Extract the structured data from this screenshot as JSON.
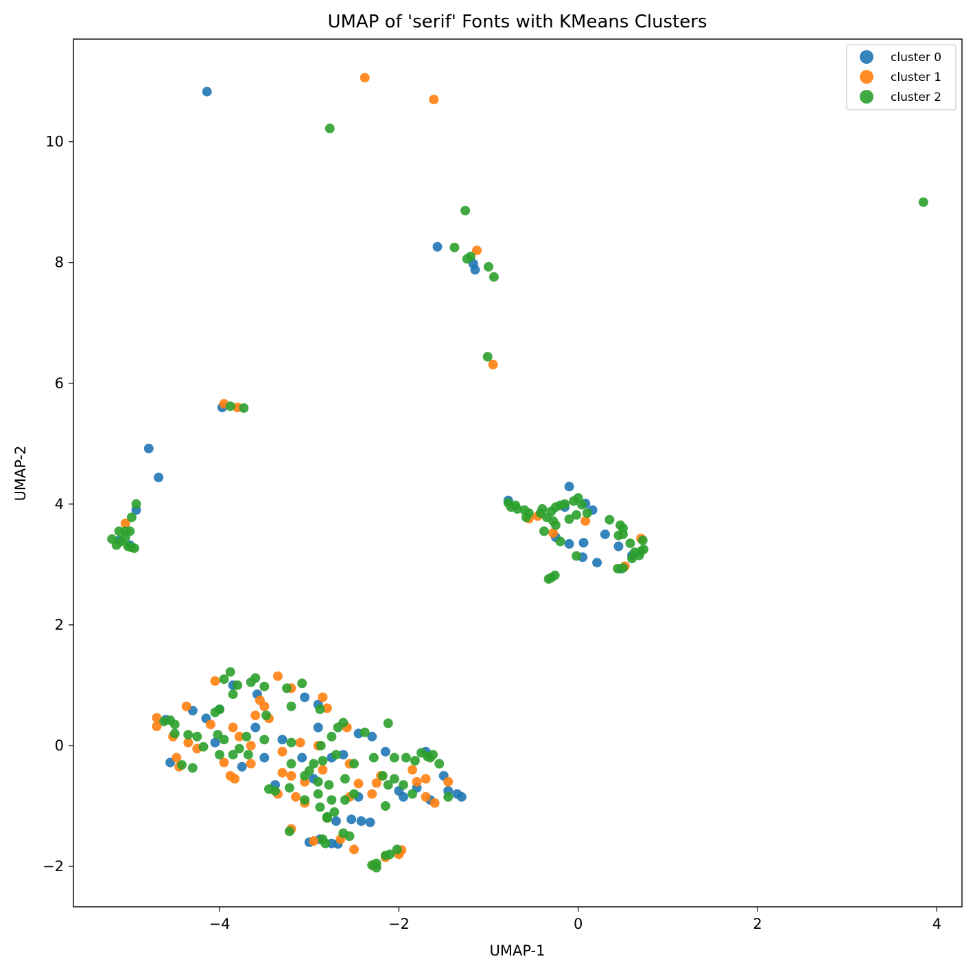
{
  "chart_data": {
    "type": "scatter",
    "title": "UMAP of 'serif' Fonts with KMeans Clusters",
    "xlabel": "UMAP-1",
    "ylabel": "UMAP-2",
    "xlim": [
      -5.63,
      4.28
    ],
    "ylim": [
      -2.67,
      11.7
    ],
    "xticks": [
      -4,
      -2,
      0,
      2,
      4
    ],
    "yticks": [
      -2,
      0,
      2,
      4,
      6,
      8,
      10
    ],
    "xtick_labels": [
      "−4",
      "−2",
      "0",
      "2",
      "4"
    ],
    "ytick_labels": [
      "−2",
      "0",
      "2",
      "4",
      "6",
      "8",
      "10"
    ],
    "legend": {
      "position": "top-right",
      "entries": [
        "cluster 0",
        "cluster 1",
        "cluster 2"
      ]
    },
    "grid": false,
    "series": [
      {
        "name": "cluster 0",
        "color": "#1f77b4",
        "points": [
          [
            -4.14,
            10.83
          ],
          [
            -1.57,
            8.26
          ],
          [
            -1.17,
            7.98
          ],
          [
            -1.15,
            7.88
          ],
          [
            -3.97,
            5.6
          ],
          [
            -4.79,
            4.92
          ],
          [
            -4.68,
            4.44
          ],
          [
            -4.93,
            3.9
          ],
          [
            -5.12,
            3.4
          ],
          [
            -5.0,
            3.32
          ],
          [
            -0.1,
            4.29
          ],
          [
            -0.78,
            4.06
          ],
          [
            -0.15,
            3.95
          ],
          [
            0.08,
            4.01
          ],
          [
            0.16,
            3.9
          ],
          [
            0.3,
            3.5
          ],
          [
            0.06,
            3.36
          ],
          [
            -0.1,
            3.34
          ],
          [
            0.05,
            3.12
          ],
          [
            0.21,
            3.03
          ],
          [
            0.45,
            3.3
          ],
          [
            0.6,
            3.15
          ],
          [
            0.48,
            2.93
          ],
          [
            -0.25,
            3.45
          ],
          [
            -4.6,
            0.43
          ],
          [
            -4.3,
            0.58
          ],
          [
            -4.15,
            0.45
          ],
          [
            -4.0,
            0.6
          ],
          [
            -3.6,
            0.3
          ],
          [
            -3.85,
            1.0
          ],
          [
            -3.58,
            0.85
          ],
          [
            -3.3,
            0.1
          ],
          [
            -3.05,
            0.8
          ],
          [
            -2.9,
            0.68
          ],
          [
            -2.9,
            0.3
          ],
          [
            -4.55,
            -0.28
          ],
          [
            -4.05,
            0.05
          ],
          [
            -3.5,
            -0.2
          ],
          [
            -3.75,
            -0.35
          ],
          [
            -3.38,
            -0.65
          ],
          [
            -3.08,
            -0.2
          ],
          [
            -2.95,
            -0.55
          ],
          [
            -2.75,
            -0.2
          ],
          [
            -2.62,
            -0.15
          ],
          [
            -2.45,
            0.2
          ],
          [
            -2.3,
            0.15
          ],
          [
            -2.45,
            -0.85
          ],
          [
            -2.15,
            -0.1
          ],
          [
            -2.0,
            -0.75
          ],
          [
            -1.95,
            -0.85
          ],
          [
            -1.8,
            -0.7
          ],
          [
            -1.5,
            -0.5
          ],
          [
            -1.45,
            -0.75
          ],
          [
            -1.35,
            -0.8
          ],
          [
            -1.3,
            -0.85
          ],
          [
            -1.65,
            -0.9
          ],
          [
            -1.7,
            -0.1
          ],
          [
            -2.7,
            -1.25
          ],
          [
            -2.53,
            -1.22
          ],
          [
            -2.42,
            -1.25
          ],
          [
            -2.32,
            -1.27
          ],
          [
            -3.0,
            -1.6
          ],
          [
            -2.75,
            -1.62
          ],
          [
            -2.68,
            -1.63
          ],
          [
            -2.88,
            -1.55
          ]
        ]
      },
      {
        "name": "cluster 1",
        "color": "#ff7f0e",
        "points": [
          [
            -2.38,
            11.06
          ],
          [
            -1.61,
            10.7
          ],
          [
            -1.13,
            8.2
          ],
          [
            -0.95,
            6.31
          ],
          [
            -3.95,
            5.66
          ],
          [
            -3.8,
            5.6
          ],
          [
            -5.05,
            3.68
          ],
          [
            -0.45,
            3.8
          ],
          [
            -0.55,
            3.76
          ],
          [
            -0.28,
            3.52
          ],
          [
            0.08,
            3.72
          ],
          [
            0.52,
            2.97
          ],
          [
            0.7,
            3.43
          ],
          [
            -4.7,
            0.46
          ],
          [
            -4.7,
            0.32
          ],
          [
            -4.37,
            0.65
          ],
          [
            -4.35,
            0.05
          ],
          [
            -4.48,
            -0.2
          ],
          [
            -4.45,
            -0.35
          ],
          [
            -4.52,
            0.15
          ],
          [
            -4.25,
            -0.05
          ],
          [
            -4.1,
            0.35
          ],
          [
            -4.05,
            1.07
          ],
          [
            -3.95,
            -0.28
          ],
          [
            -3.6,
            0.5
          ],
          [
            -3.85,
            0.3
          ],
          [
            -3.88,
            -0.5
          ],
          [
            -3.83,
            -0.55
          ],
          [
            -3.55,
            0.75
          ],
          [
            -3.5,
            0.65
          ],
          [
            -3.45,
            0.45
          ],
          [
            -3.78,
            0.15
          ],
          [
            -3.65,
            0.0
          ],
          [
            -3.65,
            -0.3
          ],
          [
            -3.35,
            1.15
          ],
          [
            -3.2,
            0.95
          ],
          [
            -3.3,
            -0.1
          ],
          [
            -3.3,
            -0.45
          ],
          [
            -3.35,
            -0.8
          ],
          [
            -3.2,
            -0.5
          ],
          [
            -3.1,
            0.05
          ],
          [
            -3.05,
            -0.6
          ],
          [
            -3.05,
            -0.95
          ],
          [
            -2.9,
            0.0
          ],
          [
            -2.85,
            0.8
          ],
          [
            -2.8,
            0.62
          ],
          [
            -2.85,
            -0.4
          ],
          [
            -2.8,
            -1.2
          ],
          [
            -2.65,
            -1.55
          ],
          [
            -2.58,
            0.3
          ],
          [
            -2.55,
            -0.3
          ],
          [
            -2.45,
            -0.63
          ],
          [
            -2.3,
            -0.8
          ],
          [
            -2.25,
            -0.62
          ],
          [
            -2.28,
            -1.98
          ],
          [
            -2.15,
            -1.85
          ],
          [
            -2.0,
            -1.8
          ],
          [
            -1.97,
            -1.73
          ],
          [
            -2.5,
            -1.72
          ],
          [
            -2.2,
            -0.5
          ],
          [
            -1.8,
            -0.6
          ],
          [
            -1.7,
            -0.55
          ],
          [
            -1.7,
            -0.85
          ],
          [
            -1.6,
            -0.95
          ],
          [
            -1.45,
            -0.6
          ],
          [
            -1.85,
            -0.4
          ],
          [
            -2.95,
            -1.58
          ],
          [
            -3.2,
            -1.38
          ],
          [
            -3.15,
            -0.85
          ],
          [
            -2.55,
            -0.85
          ]
        ]
      },
      {
        "name": "cluster 2",
        "color": "#2ca02c",
        "points": [
          [
            -2.77,
            10.22
          ],
          [
            3.85,
            9.0
          ],
          [
            -1.26,
            8.86
          ],
          [
            -1.38,
            8.25
          ],
          [
            -1.2,
            8.1
          ],
          [
            -1.24,
            8.06
          ],
          [
            -1.0,
            7.93
          ],
          [
            -0.94,
            7.76
          ],
          [
            -1.01,
            6.44
          ],
          [
            -3.88,
            5.62
          ],
          [
            -3.73,
            5.59
          ],
          [
            -4.93,
            4.0
          ],
          [
            -4.98,
            3.78
          ],
          [
            -5.05,
            3.55
          ],
          [
            -5.12,
            3.55
          ],
          [
            -5.2,
            3.42
          ],
          [
            -5.15,
            3.32
          ],
          [
            -5.1,
            3.38
          ],
          [
            -5.05,
            3.45
          ],
          [
            -5.02,
            3.3
          ],
          [
            -4.98,
            3.28
          ],
          [
            -4.95,
            3.27
          ],
          [
            -5.0,
            3.55
          ],
          [
            -0.78,
            4.02
          ],
          [
            -0.75,
            3.95
          ],
          [
            -0.7,
            3.98
          ],
          [
            -0.68,
            3.92
          ],
          [
            -0.6,
            3.9
          ],
          [
            -0.55,
            3.85
          ],
          [
            -0.58,
            3.78
          ],
          [
            -0.42,
            3.85
          ],
          [
            -0.4,
            3.92
          ],
          [
            -0.35,
            3.78
          ],
          [
            -0.3,
            3.88
          ],
          [
            -0.25,
            3.95
          ],
          [
            -0.2,
            3.98
          ],
          [
            -0.15,
            4.0
          ],
          [
            -0.05,
            4.05
          ],
          [
            0.0,
            4.1
          ],
          [
            0.04,
            3.99
          ],
          [
            0.1,
            3.85
          ],
          [
            -0.02,
            3.82
          ],
          [
            -0.1,
            3.75
          ],
          [
            -0.25,
            3.65
          ],
          [
            -0.38,
            3.55
          ],
          [
            -0.28,
            3.72
          ],
          [
            -0.2,
            3.38
          ],
          [
            -0.02,
            3.14
          ],
          [
            -0.3,
            2.78
          ],
          [
            -0.26,
            2.82
          ],
          [
            -0.33,
            2.76
          ],
          [
            0.35,
            3.74
          ],
          [
            0.47,
            3.65
          ],
          [
            0.5,
            3.6
          ],
          [
            0.45,
            3.48
          ],
          [
            0.5,
            3.5
          ],
          [
            0.58,
            3.35
          ],
          [
            0.63,
            3.2
          ],
          [
            0.7,
            3.22
          ],
          [
            0.73,
            3.25
          ],
          [
            0.72,
            3.4
          ],
          [
            0.6,
            3.1
          ],
          [
            0.68,
            3.15
          ],
          [
            0.44,
            2.93
          ],
          [
            0.5,
            2.94
          ],
          [
            -4.62,
            0.4
          ],
          [
            -4.55,
            0.42
          ],
          [
            -4.5,
            0.35
          ],
          [
            -4.5,
            0.2
          ],
          [
            -4.35,
            0.18
          ],
          [
            -4.25,
            0.15
          ],
          [
            -4.3,
            -0.37
          ],
          [
            -4.42,
            -0.32
          ],
          [
            -4.18,
            -0.02
          ],
          [
            -4.05,
            0.55
          ],
          [
            -4.0,
            0.6
          ],
          [
            -4.02,
            0.18
          ],
          [
            -4.0,
            -0.15
          ],
          [
            -3.95,
            0.1
          ],
          [
            -3.88,
            1.22
          ],
          [
            -3.95,
            1.1
          ],
          [
            -3.85,
            0.85
          ],
          [
            -3.8,
            1.0
          ],
          [
            -3.85,
            -0.15
          ],
          [
            -3.78,
            -0.05
          ],
          [
            -3.7,
            0.15
          ],
          [
            -3.65,
            1.05
          ],
          [
            -3.6,
            1.12
          ],
          [
            -3.5,
            0.98
          ],
          [
            -3.48,
            0.5
          ],
          [
            -3.5,
            0.1
          ],
          [
            -3.68,
            -0.15
          ],
          [
            -3.25,
            0.95
          ],
          [
            -3.2,
            0.65
          ],
          [
            -3.08,
            1.03
          ],
          [
            -3.2,
            0.05
          ],
          [
            -3.2,
            -0.3
          ],
          [
            -3.22,
            -0.7
          ],
          [
            -3.38,
            -0.75
          ],
          [
            -3.45,
            -0.72
          ],
          [
            -3.05,
            -0.5
          ],
          [
            -3.0,
            -0.42
          ],
          [
            -2.95,
            -0.3
          ],
          [
            -3.05,
            -0.9
          ],
          [
            -2.9,
            -0.8
          ],
          [
            -2.88,
            -1.02
          ],
          [
            -2.75,
            -0.9
          ],
          [
            -2.78,
            -0.65
          ],
          [
            -2.85,
            -0.25
          ],
          [
            -2.87,
            0.0
          ],
          [
            -2.88,
            0.6
          ],
          [
            -2.75,
            0.15
          ],
          [
            -2.68,
            0.3
          ],
          [
            -2.62,
            0.38
          ],
          [
            -2.7,
            -0.15
          ],
          [
            -2.6,
            -0.55
          ],
          [
            -2.6,
            -0.9
          ],
          [
            -2.5,
            -0.8
          ],
          [
            -2.5,
            -0.3
          ],
          [
            -2.38,
            0.22
          ],
          [
            -2.28,
            -0.2
          ],
          [
            -2.18,
            -0.5
          ],
          [
            -2.12,
            0.37
          ],
          [
            -2.12,
            -0.65
          ],
          [
            -2.05,
            -0.2
          ],
          [
            -2.05,
            -0.55
          ],
          [
            -2.15,
            -1.0
          ],
          [
            -1.95,
            -0.65
          ],
          [
            -1.92,
            -0.2
          ],
          [
            -1.85,
            -0.8
          ],
          [
            -1.82,
            -0.25
          ],
          [
            -1.75,
            -0.12
          ],
          [
            -1.68,
            -0.18
          ],
          [
            -1.62,
            -0.15
          ],
          [
            -1.55,
            -0.3
          ],
          [
            -1.45,
            -0.85
          ],
          [
            -1.65,
            -0.2
          ],
          [
            -2.72,
            -1.1
          ],
          [
            -2.8,
            -1.18
          ],
          [
            -2.62,
            -1.45
          ],
          [
            -2.55,
            -1.5
          ],
          [
            -2.85,
            -1.55
          ],
          [
            -2.82,
            -1.62
          ],
          [
            -3.22,
            -1.42
          ],
          [
            -2.25,
            -1.95
          ],
          [
            -2.15,
            -1.82
          ],
          [
            -2.1,
            -1.8
          ],
          [
            -2.02,
            -1.72
          ],
          [
            -2.25,
            -2.02
          ],
          [
            -2.3,
            -1.98
          ],
          [
            -2.8,
            -1.2
          ],
          [
            -2.9,
            -0.6
          ]
        ]
      }
    ]
  }
}
